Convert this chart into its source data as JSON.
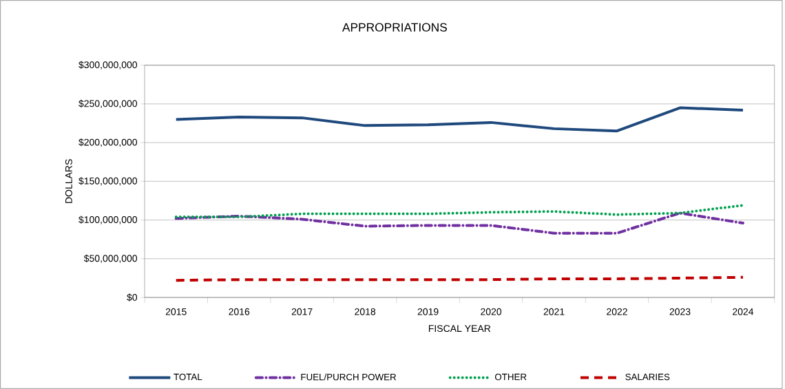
{
  "chart_data": {
    "type": "line",
    "title": "APPROPRIATIONS",
    "xlabel": "FISCAL YEAR",
    "ylabel": "DOLLARS",
    "categories": [
      "2015",
      "2016",
      "2017",
      "2018",
      "2019",
      "2020",
      "2021",
      "2022",
      "2023",
      "2024"
    ],
    "series": [
      {
        "name": "TOTAL",
        "color": "#1f497d",
        "line_style": "solid",
        "values": [
          230000000,
          233000000,
          232000000,
          222000000,
          223000000,
          226000000,
          218000000,
          215000000,
          245000000,
          242000000
        ]
      },
      {
        "name": "FUEL/PURCH POWER",
        "color": "#7030a0",
        "line_style": "dashdot",
        "values": [
          102000000,
          105000000,
          101000000,
          92000000,
          93000000,
          93000000,
          83000000,
          83000000,
          109000000,
          96000000
        ]
      },
      {
        "name": "OTHER",
        "color": "#00a050",
        "line_style": "dotted",
        "values": [
          104000000,
          104000000,
          108000000,
          108000000,
          108000000,
          110000000,
          111000000,
          107000000,
          109000000,
          119000000
        ]
      },
      {
        "name": "SALARIES",
        "color": "#c00000",
        "line_style": "dashed",
        "values": [
          22000000,
          23000000,
          23000000,
          23000000,
          23000000,
          23000000,
          24000000,
          24000000,
          25000000,
          26000000
        ]
      }
    ],
    "ylim": [
      0,
      300000000
    ],
    "yticks": [
      {
        "value": 0,
        "label": "$0"
      },
      {
        "value": 50000000,
        "label": "$50,000,000"
      },
      {
        "value": 100000000,
        "label": "$100,000,000"
      },
      {
        "value": 150000000,
        "label": "$150,000,000"
      },
      {
        "value": 200000000,
        "label": "$200,000,000"
      },
      {
        "value": 250000000,
        "label": "$250,000,000"
      },
      {
        "value": 300000000,
        "label": "$300,000,000"
      }
    ],
    "grid": "y",
    "legend": "bottom",
    "marker": "none"
  }
}
